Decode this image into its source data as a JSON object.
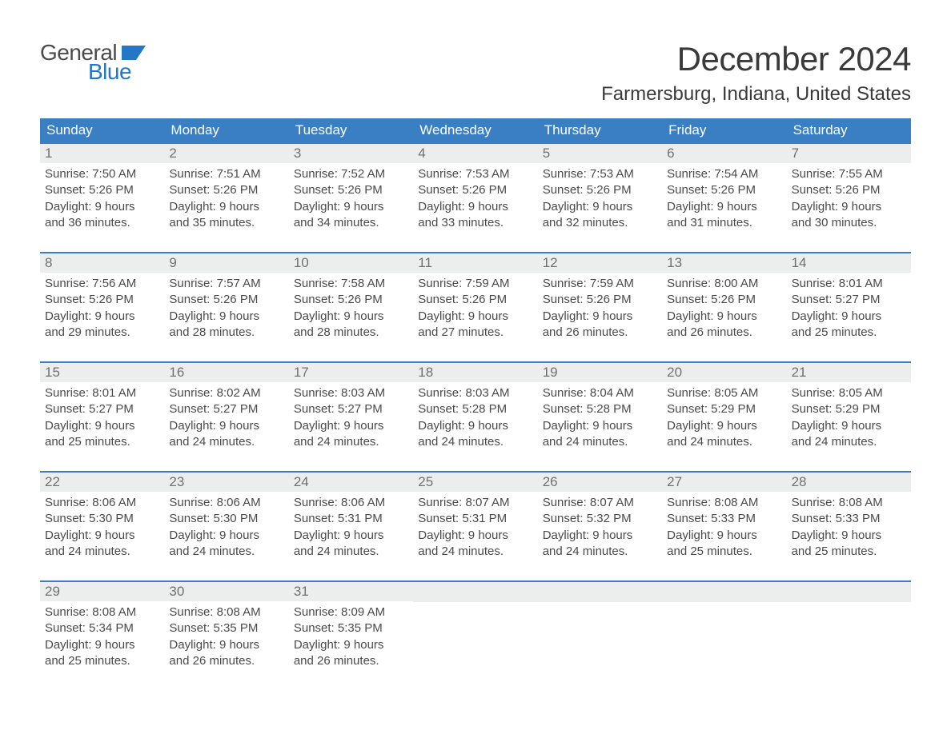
{
  "brand": {
    "part1": "General",
    "part2": "Blue",
    "flag_color": "#2477c4"
  },
  "title": "December 2024",
  "location": "Farmersburg, Indiana, United States",
  "colors": {
    "header_bg": "#3a7fc4",
    "header_text": "#ffffff",
    "week_border": "#3a7fc4",
    "daynum_bg": "#eceded",
    "daynum_text": "#707070",
    "body_text": "#4a4a4a",
    "background": "#ffffff",
    "brand_accent": "#2477c4"
  },
  "typography": {
    "month_title_fontsize": 42,
    "location_fontsize": 24,
    "weekday_fontsize": 17,
    "daynum_fontsize": 17,
    "dayinfo_fontsize": 15,
    "logo_fontsize": 28
  },
  "weekdays": [
    "Sunday",
    "Monday",
    "Tuesday",
    "Wednesday",
    "Thursday",
    "Friday",
    "Saturday"
  ],
  "weeks": [
    [
      {
        "day": "1",
        "sunrise": "Sunrise: 7:50 AM",
        "sunset": "Sunset: 5:26 PM",
        "daylight1": "Daylight: 9 hours",
        "daylight2": "and 36 minutes."
      },
      {
        "day": "2",
        "sunrise": "Sunrise: 7:51 AM",
        "sunset": "Sunset: 5:26 PM",
        "daylight1": "Daylight: 9 hours",
        "daylight2": "and 35 minutes."
      },
      {
        "day": "3",
        "sunrise": "Sunrise: 7:52 AM",
        "sunset": "Sunset: 5:26 PM",
        "daylight1": "Daylight: 9 hours",
        "daylight2": "and 34 minutes."
      },
      {
        "day": "4",
        "sunrise": "Sunrise: 7:53 AM",
        "sunset": "Sunset: 5:26 PM",
        "daylight1": "Daylight: 9 hours",
        "daylight2": "and 33 minutes."
      },
      {
        "day": "5",
        "sunrise": "Sunrise: 7:53 AM",
        "sunset": "Sunset: 5:26 PM",
        "daylight1": "Daylight: 9 hours",
        "daylight2": "and 32 minutes."
      },
      {
        "day": "6",
        "sunrise": "Sunrise: 7:54 AM",
        "sunset": "Sunset: 5:26 PM",
        "daylight1": "Daylight: 9 hours",
        "daylight2": "and 31 minutes."
      },
      {
        "day": "7",
        "sunrise": "Sunrise: 7:55 AM",
        "sunset": "Sunset: 5:26 PM",
        "daylight1": "Daylight: 9 hours",
        "daylight2": "and 30 minutes."
      }
    ],
    [
      {
        "day": "8",
        "sunrise": "Sunrise: 7:56 AM",
        "sunset": "Sunset: 5:26 PM",
        "daylight1": "Daylight: 9 hours",
        "daylight2": "and 29 minutes."
      },
      {
        "day": "9",
        "sunrise": "Sunrise: 7:57 AM",
        "sunset": "Sunset: 5:26 PM",
        "daylight1": "Daylight: 9 hours",
        "daylight2": "and 28 minutes."
      },
      {
        "day": "10",
        "sunrise": "Sunrise: 7:58 AM",
        "sunset": "Sunset: 5:26 PM",
        "daylight1": "Daylight: 9 hours",
        "daylight2": "and 28 minutes."
      },
      {
        "day": "11",
        "sunrise": "Sunrise: 7:59 AM",
        "sunset": "Sunset: 5:26 PM",
        "daylight1": "Daylight: 9 hours",
        "daylight2": "and 27 minutes."
      },
      {
        "day": "12",
        "sunrise": "Sunrise: 7:59 AM",
        "sunset": "Sunset: 5:26 PM",
        "daylight1": "Daylight: 9 hours",
        "daylight2": "and 26 minutes."
      },
      {
        "day": "13",
        "sunrise": "Sunrise: 8:00 AM",
        "sunset": "Sunset: 5:26 PM",
        "daylight1": "Daylight: 9 hours",
        "daylight2": "and 26 minutes."
      },
      {
        "day": "14",
        "sunrise": "Sunrise: 8:01 AM",
        "sunset": "Sunset: 5:27 PM",
        "daylight1": "Daylight: 9 hours",
        "daylight2": "and 25 minutes."
      }
    ],
    [
      {
        "day": "15",
        "sunrise": "Sunrise: 8:01 AM",
        "sunset": "Sunset: 5:27 PM",
        "daylight1": "Daylight: 9 hours",
        "daylight2": "and 25 minutes."
      },
      {
        "day": "16",
        "sunrise": "Sunrise: 8:02 AM",
        "sunset": "Sunset: 5:27 PM",
        "daylight1": "Daylight: 9 hours",
        "daylight2": "and 24 minutes."
      },
      {
        "day": "17",
        "sunrise": "Sunrise: 8:03 AM",
        "sunset": "Sunset: 5:27 PM",
        "daylight1": "Daylight: 9 hours",
        "daylight2": "and 24 minutes."
      },
      {
        "day": "18",
        "sunrise": "Sunrise: 8:03 AM",
        "sunset": "Sunset: 5:28 PM",
        "daylight1": "Daylight: 9 hours",
        "daylight2": "and 24 minutes."
      },
      {
        "day": "19",
        "sunrise": "Sunrise: 8:04 AM",
        "sunset": "Sunset: 5:28 PM",
        "daylight1": "Daylight: 9 hours",
        "daylight2": "and 24 minutes."
      },
      {
        "day": "20",
        "sunrise": "Sunrise: 8:05 AM",
        "sunset": "Sunset: 5:29 PM",
        "daylight1": "Daylight: 9 hours",
        "daylight2": "and 24 minutes."
      },
      {
        "day": "21",
        "sunrise": "Sunrise: 8:05 AM",
        "sunset": "Sunset: 5:29 PM",
        "daylight1": "Daylight: 9 hours",
        "daylight2": "and 24 minutes."
      }
    ],
    [
      {
        "day": "22",
        "sunrise": "Sunrise: 8:06 AM",
        "sunset": "Sunset: 5:30 PM",
        "daylight1": "Daylight: 9 hours",
        "daylight2": "and 24 minutes."
      },
      {
        "day": "23",
        "sunrise": "Sunrise: 8:06 AM",
        "sunset": "Sunset: 5:30 PM",
        "daylight1": "Daylight: 9 hours",
        "daylight2": "and 24 minutes."
      },
      {
        "day": "24",
        "sunrise": "Sunrise: 8:06 AM",
        "sunset": "Sunset: 5:31 PM",
        "daylight1": "Daylight: 9 hours",
        "daylight2": "and 24 minutes."
      },
      {
        "day": "25",
        "sunrise": "Sunrise: 8:07 AM",
        "sunset": "Sunset: 5:31 PM",
        "daylight1": "Daylight: 9 hours",
        "daylight2": "and 24 minutes."
      },
      {
        "day": "26",
        "sunrise": "Sunrise: 8:07 AM",
        "sunset": "Sunset: 5:32 PM",
        "daylight1": "Daylight: 9 hours",
        "daylight2": "and 24 minutes."
      },
      {
        "day": "27",
        "sunrise": "Sunrise: 8:08 AM",
        "sunset": "Sunset: 5:33 PM",
        "daylight1": "Daylight: 9 hours",
        "daylight2": "and 25 minutes."
      },
      {
        "day": "28",
        "sunrise": "Sunrise: 8:08 AM",
        "sunset": "Sunset: 5:33 PM",
        "daylight1": "Daylight: 9 hours",
        "daylight2": "and 25 minutes."
      }
    ],
    [
      {
        "day": "29",
        "sunrise": "Sunrise: 8:08 AM",
        "sunset": "Sunset: 5:34 PM",
        "daylight1": "Daylight: 9 hours",
        "daylight2": "and 25 minutes."
      },
      {
        "day": "30",
        "sunrise": "Sunrise: 8:08 AM",
        "sunset": "Sunset: 5:35 PM",
        "daylight1": "Daylight: 9 hours",
        "daylight2": "and 26 minutes."
      },
      {
        "day": "31",
        "sunrise": "Sunrise: 8:09 AM",
        "sunset": "Sunset: 5:35 PM",
        "daylight1": "Daylight: 9 hours",
        "daylight2": "and 26 minutes."
      },
      null,
      null,
      null,
      null
    ]
  ]
}
